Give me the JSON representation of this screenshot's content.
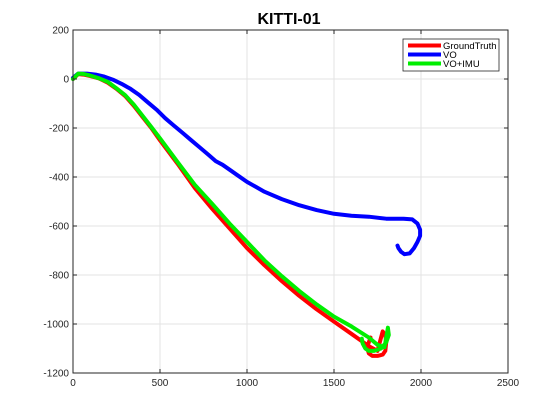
{
  "chart_data": {
    "type": "line",
    "title": "KITTI-01",
    "xlim": [
      0,
      2500
    ],
    "ylim": [
      -1200,
      200
    ],
    "xticks": [
      0,
      500,
      1000,
      1500,
      2000,
      2500
    ],
    "yticks": [
      200,
      0,
      -200,
      -400,
      -600,
      -800,
      -1000,
      -1200
    ],
    "grid": true,
    "legend_position": "top-right",
    "series": [
      {
        "name": "GroundTruth",
        "color": "#ff0000",
        "x": [
          0,
          30,
          60,
          100,
          150,
          200,
          250,
          300,
          350,
          400,
          450,
          500,
          600,
          700,
          800,
          900,
          1000,
          1100,
          1200,
          1300,
          1400,
          1500,
          1600,
          1700,
          1750,
          1780,
          1795,
          1800,
          1795,
          1780,
          1750,
          1720,
          1700,
          1690,
          1700,
          1710
        ],
        "y": [
          0,
          20,
          18,
          12,
          2,
          -15,
          -40,
          -70,
          -110,
          -155,
          -200,
          -250,
          -345,
          -445,
          -530,
          -610,
          -690,
          -760,
          -825,
          -885,
          -940,
          -990,
          -1040,
          -1090,
          -1110,
          -1030,
          -1045,
          -1075,
          -1110,
          -1125,
          -1130,
          -1130,
          -1120,
          -1095,
          -1075,
          -1055
        ]
      },
      {
        "name": "VO",
        "color": "#0000ff",
        "x": [
          0,
          30,
          80,
          130,
          180,
          230,
          280,
          330,
          380,
          430,
          480,
          530,
          580,
          630,
          680,
          730,
          780,
          820,
          860,
          900,
          950,
          1000,
          1050,
          1100,
          1200,
          1300,
          1400,
          1500,
          1600,
          1700,
          1800,
          1850,
          1900,
          1950,
          1980,
          1995,
          1995,
          1980,
          1960,
          1935,
          1905,
          1885,
          1870,
          1865
        ],
        "y": [
          5,
          22,
          22,
          18,
          10,
          -3,
          -20,
          -40,
          -65,
          -95,
          -125,
          -160,
          -190,
          -220,
          -250,
          -280,
          -310,
          -335,
          -350,
          -370,
          -395,
          -420,
          -440,
          -460,
          -490,
          -515,
          -535,
          -550,
          -558,
          -562,
          -570,
          -570,
          -570,
          -573,
          -590,
          -615,
          -640,
          -665,
          -690,
          -712,
          -715,
          -705,
          -690,
          -680
        ]
      },
      {
        "name": "VO+IMU",
        "color": "#00ee00",
        "x": [
          0,
          30,
          60,
          100,
          150,
          200,
          250,
          300,
          350,
          400,
          450,
          500,
          600,
          700,
          800,
          900,
          1000,
          1100,
          1200,
          1300,
          1400,
          1500,
          1600,
          1700,
          1750,
          1790,
          1810,
          1815,
          1800,
          1770,
          1730,
          1700,
          1680,
          1665,
          1660
        ],
        "y": [
          0,
          22,
          21,
          14,
          3,
          -12,
          -38,
          -66,
          -105,
          -150,
          -196,
          -242,
          -338,
          -432,
          -510,
          -590,
          -665,
          -740,
          -805,
          -865,
          -920,
          -970,
          -1010,
          -1055,
          -1085,
          -1095,
          -1015,
          -1045,
          -1075,
          -1100,
          -1110,
          -1110,
          -1100,
          -1080,
          -1060
        ]
      }
    ]
  }
}
